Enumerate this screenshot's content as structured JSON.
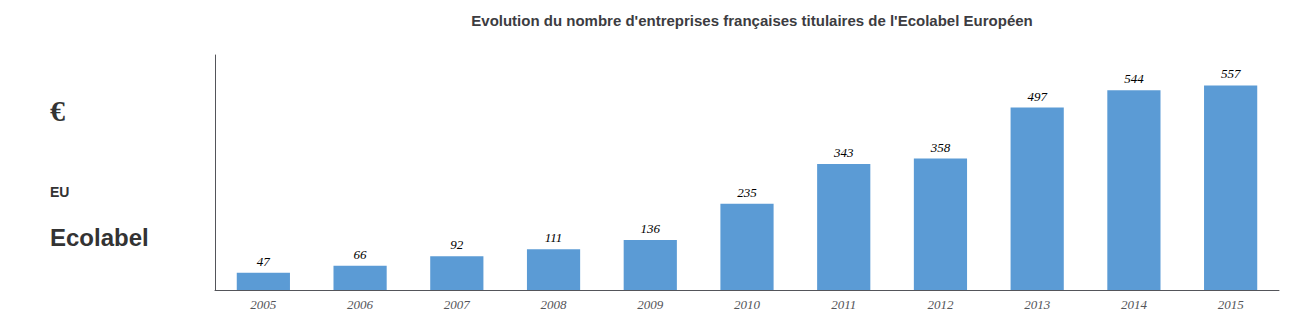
{
  "chart_data": {
    "type": "bar",
    "title": "Evolution du nombre d'entreprises françaises titulaires de l'Ecolabel Européen",
    "categories": [
      "2005",
      "2006",
      "2007",
      "2008",
      "2009",
      "2010",
      "2011",
      "2012",
      "2013",
      "2014",
      "2015"
    ],
    "values": [
      47,
      66,
      92,
      111,
      136,
      235,
      343,
      358,
      497,
      544,
      557
    ],
    "color": "#5B9BD5",
    "ylim": [
      0,
      640
    ],
    "grid": false,
    "data_labels": true,
    "tick_labels": "x",
    "annotations": [
      "€",
      "EU",
      "Ecolabel"
    ]
  }
}
